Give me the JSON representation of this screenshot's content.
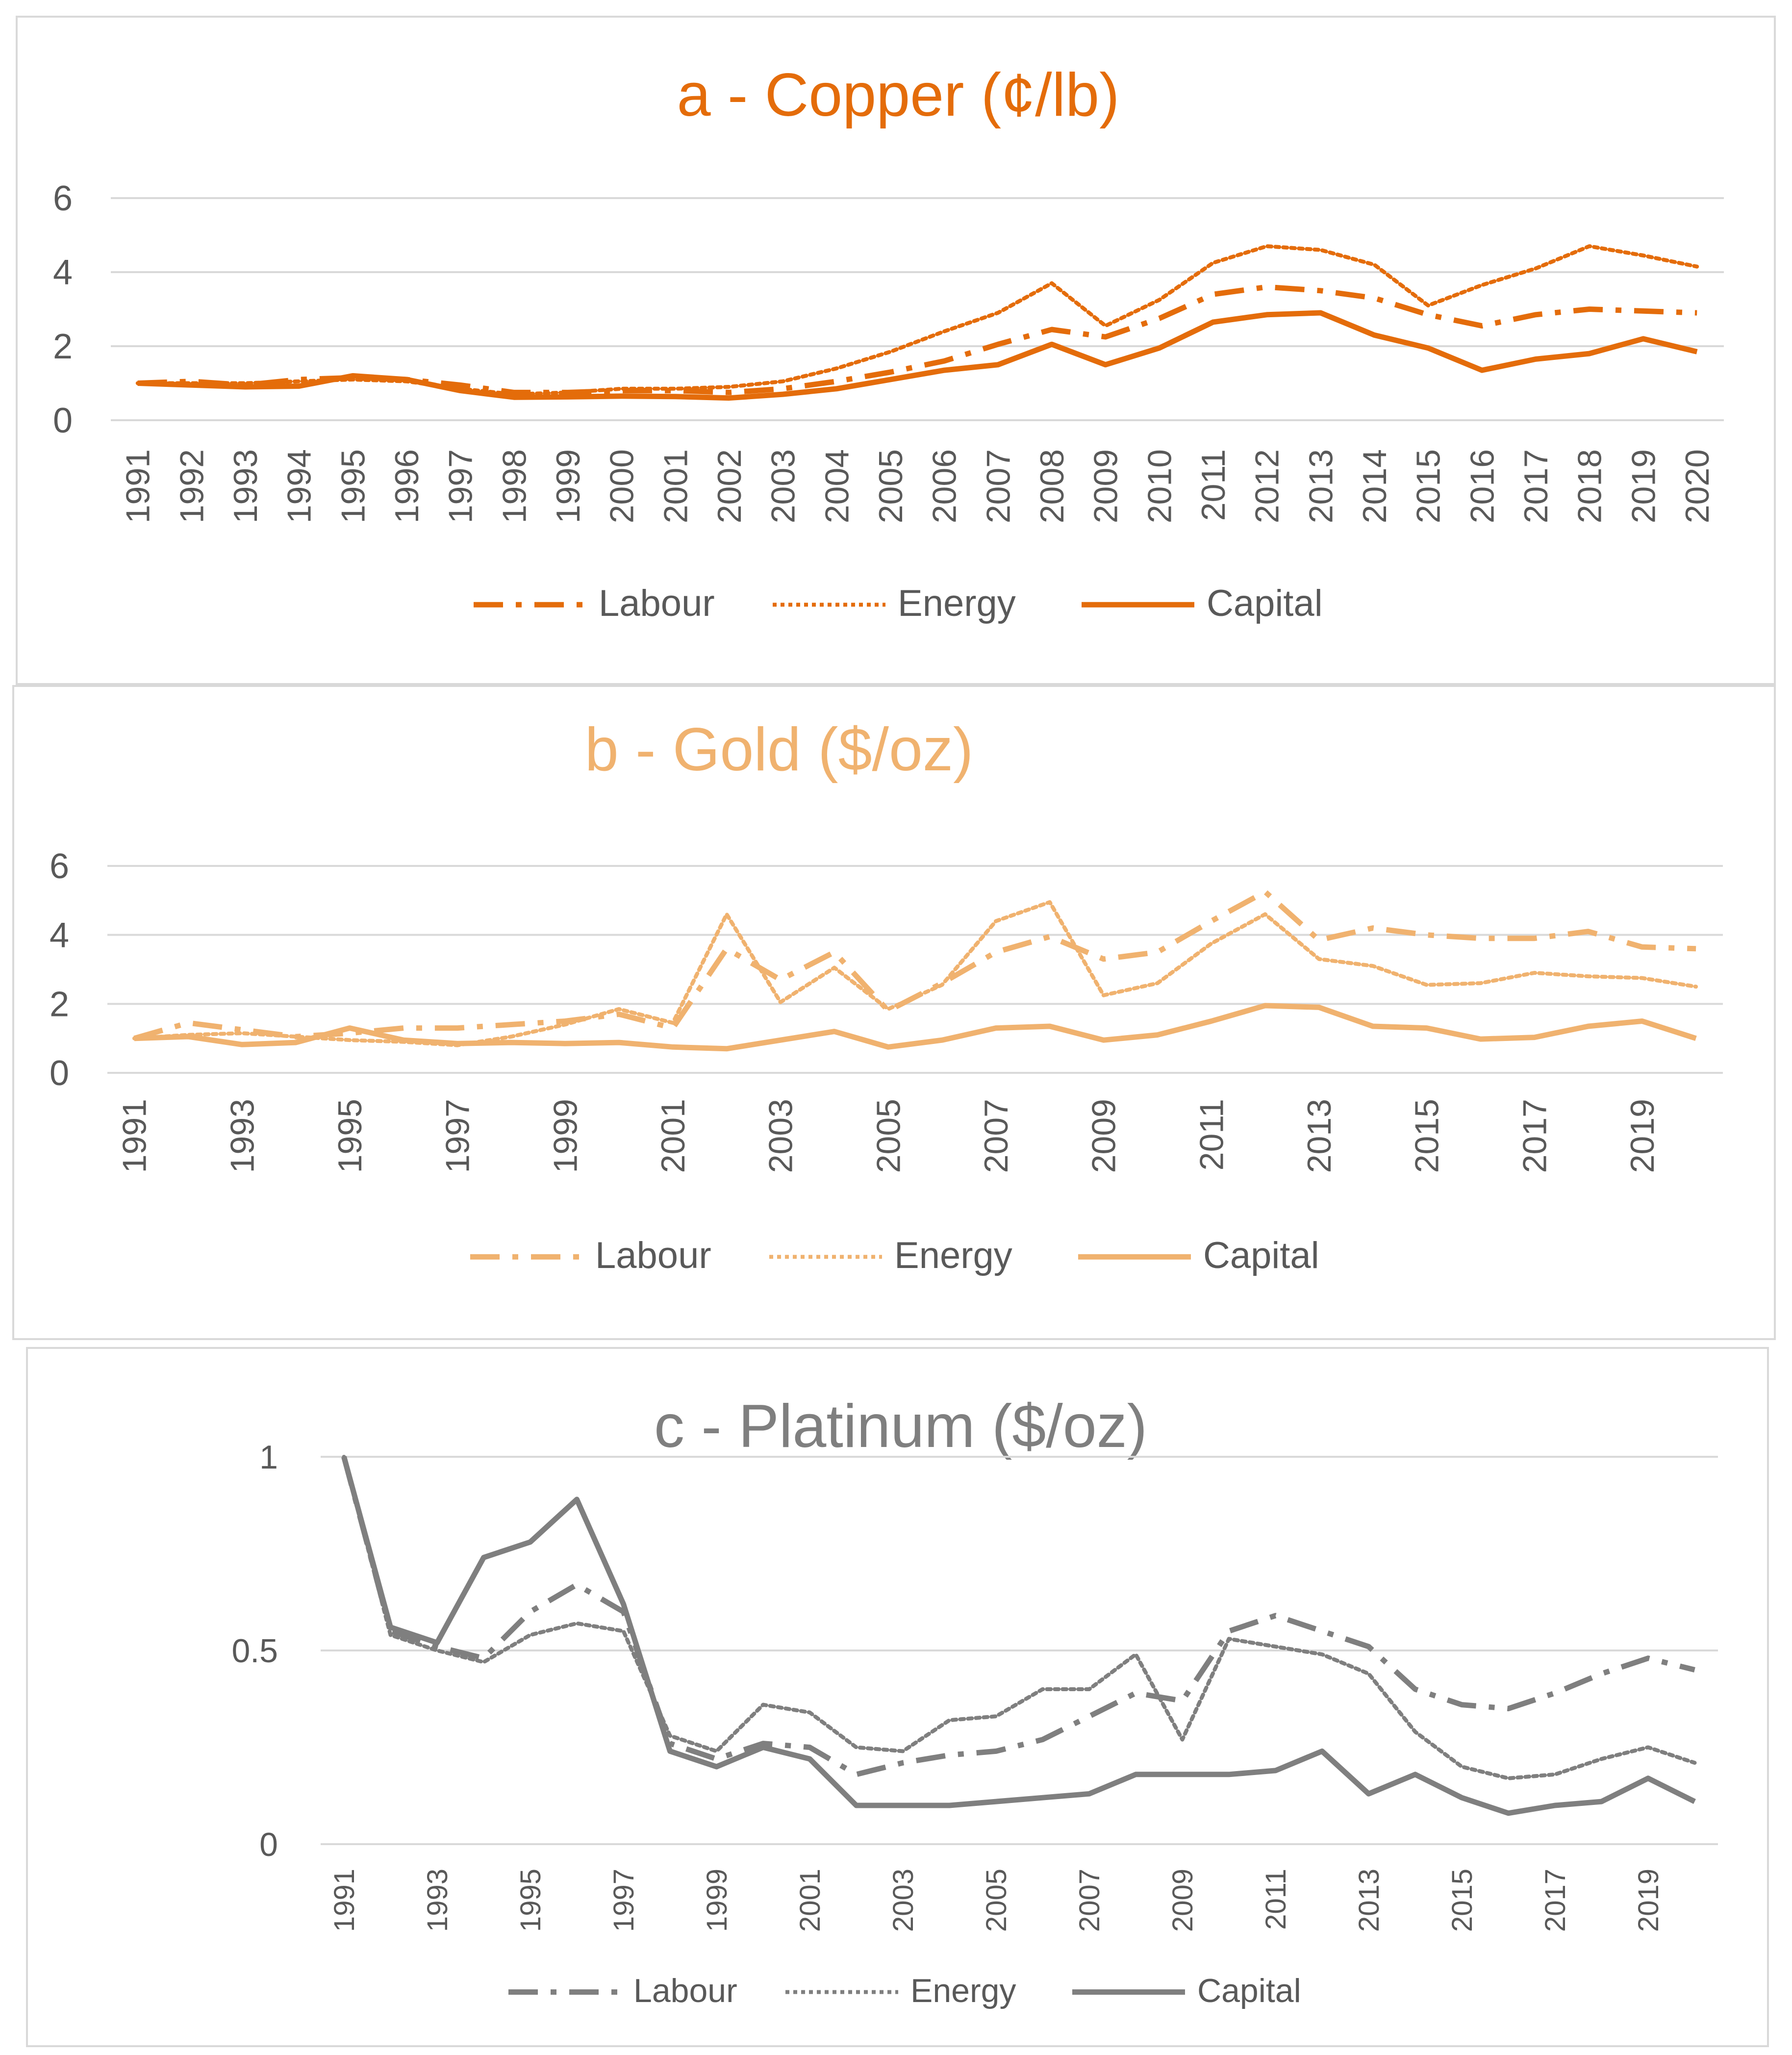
{
  "chart_data": [
    {
      "type": "line",
      "title": "a - Copper (¢/lb)",
      "color": "#E46C0A",
      "ylim": [
        0,
        6
      ],
      "yticks": [
        "0",
        "2",
        "4",
        "6"
      ],
      "x": [
        "1991",
        "1992",
        "1993",
        "1994",
        "1995",
        "1996",
        "1997",
        "1998",
        "1999",
        "2000",
        "2001",
        "2002",
        "2003",
        "2004",
        "2005",
        "2006",
        "2007",
        "2008",
        "2009",
        "2010",
        "2011",
        "2012",
        "2013",
        "2014",
        "2015",
        "2016",
        "2017",
        "2018",
        "2019",
        "2020"
      ],
      "x_tick_labels": [
        "1991",
        "1992",
        "1993",
        "1994",
        "1995",
        "1996",
        "1997",
        "1998",
        "1999",
        "2000",
        "2001",
        "2002",
        "2003",
        "2004",
        "2005",
        "2006",
        "2007",
        "2008",
        "2009",
        "2010",
        "2011",
        "2012",
        "2013",
        "2014",
        "2015",
        "2016",
        "2017",
        "2018",
        "2019",
        "2020"
      ],
      "series": [
        {
          "name": "Labour",
          "style": "dashdot",
          "values": [
            1.0,
            1.05,
            0.95,
            1.1,
            1.15,
            1.1,
            0.95,
            0.75,
            0.75,
            0.8,
            0.8,
            0.75,
            0.85,
            1.05,
            1.3,
            1.6,
            2.05,
            2.45,
            2.25,
            2.75,
            3.4,
            3.6,
            3.5,
            3.3,
            2.85,
            2.55,
            2.85,
            3.0,
            2.95,
            2.9
          ]
        },
        {
          "name": "Energy",
          "style": "dotted",
          "values": [
            1.0,
            1.0,
            1.0,
            1.05,
            1.1,
            1.05,
            0.85,
            0.7,
            0.75,
            0.85,
            0.85,
            0.9,
            1.05,
            1.4,
            1.85,
            2.4,
            2.9,
            3.7,
            2.55,
            3.25,
            4.25,
            4.7,
            4.6,
            4.2,
            3.1,
            3.65,
            4.1,
            4.7,
            4.45,
            4.15
          ]
        },
        {
          "name": "Capital",
          "style": "solid",
          "values": [
            1.0,
            0.95,
            0.9,
            0.92,
            1.2,
            1.1,
            0.8,
            0.62,
            0.63,
            0.65,
            0.64,
            0.6,
            0.7,
            0.85,
            1.1,
            1.35,
            1.5,
            2.05,
            1.5,
            1.95,
            2.65,
            2.85,
            2.9,
            2.3,
            1.95,
            1.35,
            1.65,
            1.8,
            2.2,
            1.85
          ]
        }
      ]
    },
    {
      "type": "line",
      "title": "b - Gold ($/oz)",
      "color": "#F0B26F",
      "ylim": [
        0,
        6
      ],
      "yticks": [
        "0",
        "2",
        "4",
        "6"
      ],
      "x": [
        "1991",
        "1992",
        "1993",
        "1994",
        "1995",
        "1996",
        "1997",
        "1998",
        "1999",
        "2000",
        "2001",
        "2002",
        "2003",
        "2004",
        "2005",
        "2006",
        "2007",
        "2008",
        "2009",
        "2010",
        "2011",
        "2012",
        "2013",
        "2014",
        "2015",
        "2016",
        "2017",
        "2018",
        "2019",
        "2020"
      ],
      "x_tick_labels": [
        "1991",
        "1993",
        "1995",
        "1997",
        "1999",
        "2001",
        "2003",
        "2005",
        "2007",
        "2009",
        "2011",
        "2013",
        "2015",
        "2017",
        "2019"
      ],
      "series": [
        {
          "name": "Labour",
          "style": "dashdot",
          "values": [
            1.0,
            1.45,
            1.25,
            1.05,
            1.15,
            1.3,
            1.3,
            1.4,
            1.5,
            1.7,
            1.3,
            3.6,
            2.7,
            3.5,
            1.8,
            2.6,
            3.5,
            3.95,
            3.3,
            3.5,
            4.4,
            5.25,
            3.85,
            4.2,
            4.0,
            3.9,
            3.9,
            4.1,
            3.65,
            3.6
          ]
        },
        {
          "name": "Energy",
          "style": "dotted",
          "values": [
            1.0,
            1.1,
            1.15,
            1.05,
            0.95,
            0.9,
            0.8,
            1.05,
            1.4,
            1.85,
            1.45,
            4.6,
            2.05,
            3.05,
            1.85,
            2.55,
            4.4,
            4.95,
            2.25,
            2.6,
            3.75,
            4.6,
            3.3,
            3.1,
            2.55,
            2.6,
            2.9,
            2.8,
            2.75,
            2.5
          ]
        },
        {
          "name": "Capital",
          "style": "solid",
          "values": [
            1.0,
            1.05,
            0.82,
            0.88,
            1.3,
            0.95,
            0.85,
            0.88,
            0.85,
            0.88,
            0.75,
            0.7,
            0.95,
            1.2,
            0.75,
            0.95,
            1.3,
            1.35,
            0.95,
            1.1,
            1.5,
            1.95,
            1.9,
            1.35,
            1.3,
            0.98,
            1.03,
            1.35,
            1.5,
            1.0
          ]
        }
      ]
    },
    {
      "type": "line",
      "title": "c - Platinum ($/oz)",
      "color": "#7F7F7F",
      "ylim": [
        0,
        1
      ],
      "yticks": [
        "0",
        "0.5",
        "1"
      ],
      "x": [
        "1991",
        "1992",
        "1993",
        "1994",
        "1995",
        "1996",
        "1997",
        "1998",
        "1999",
        "2000",
        "2001",
        "2002",
        "2003",
        "2004",
        "2005",
        "2006",
        "2007",
        "2008",
        "2009",
        "2010",
        "2011",
        "2012",
        "2013",
        "2014",
        "2015",
        "2016",
        "2017",
        "2018",
        "2019",
        "2020"
      ],
      "x_tick_labels": [
        "1991",
        "1993",
        "1995",
        "1997",
        "1999",
        "2001",
        "2003",
        "2005",
        "2007",
        "2009",
        "2011",
        "2013",
        "2015",
        "2017",
        "2019"
      ],
      "series": [
        {
          "name": "Labour",
          "style": "dashdot",
          "values": [
            1.0,
            0.55,
            0.51,
            0.48,
            0.6,
            0.67,
            0.6,
            0.26,
            0.22,
            0.26,
            0.25,
            0.18,
            0.21,
            0.23,
            0.24,
            0.27,
            0.33,
            0.39,
            0.37,
            0.55,
            0.59,
            0.55,
            0.51,
            0.4,
            0.36,
            0.35,
            0.39,
            0.44,
            0.48,
            0.45
          ]
        },
        {
          "name": "Energy",
          "style": "dotted",
          "values": [
            1.0,
            0.54,
            0.5,
            0.47,
            0.54,
            0.57,
            0.55,
            0.28,
            0.24,
            0.36,
            0.34,
            0.25,
            0.24,
            0.32,
            0.33,
            0.4,
            0.4,
            0.49,
            0.27,
            0.53,
            0.51,
            0.49,
            0.44,
            0.29,
            0.2,
            0.17,
            0.18,
            0.22,
            0.25,
            0.21
          ]
        },
        {
          "name": "Capital",
          "style": "solid",
          "values": [
            1.0,
            0.56,
            0.52,
            0.74,
            0.78,
            0.89,
            0.62,
            0.24,
            0.2,
            0.25,
            0.22,
            0.1,
            0.1,
            0.1,
            0.11,
            0.12,
            0.13,
            0.18,
            0.18,
            0.18,
            0.19,
            0.24,
            0.13,
            0.18,
            0.12,
            0.08,
            0.1,
            0.11,
            0.17,
            0.11
          ]
        }
      ]
    }
  ]
}
